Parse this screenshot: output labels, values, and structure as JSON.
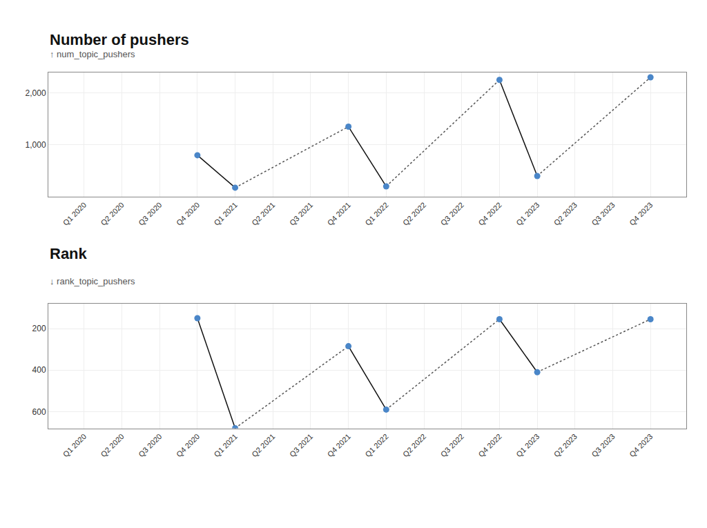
{
  "chart_data": [
    {
      "type": "line",
      "title": "Number of pushers",
      "ylabel": "↑ num_topic_pushers",
      "categories": [
        "Q1 2020",
        "Q2 2020",
        "Q3 2020",
        "Q4 2020",
        "Q1 2021",
        "Q2 2021",
        "Q3 2021",
        "Q4 2021",
        "Q1 2022",
        "Q2 2022",
        "Q3 2022",
        "Q4 2022",
        "Q1 2023",
        "Q2 2023",
        "Q3 2023",
        "Q4 2023"
      ],
      "values": [
        null,
        null,
        null,
        800,
        175,
        null,
        null,
        1350,
        200,
        null,
        null,
        2250,
        400,
        null,
        null,
        2300
      ],
      "color": "#4a86c8",
      "marker": "circle",
      "ylim": [
        0,
        2400
      ],
      "yticks": [
        {
          "value": 1000,
          "label": "1,000"
        },
        {
          "value": 2000,
          "label": "2,000"
        }
      ],
      "grid": true
    },
    {
      "type": "line",
      "title": "Rank",
      "ylabel": "↓ rank_topic_pushers",
      "categories": [
        "Q1 2020",
        "Q2 2020",
        "Q3 2020",
        "Q4 2020",
        "Q1 2021",
        "Q2 2021",
        "Q3 2021",
        "Q4 2021",
        "Q1 2022",
        "Q2 2022",
        "Q3 2022",
        "Q4 2022",
        "Q1 2023",
        "Q2 2023",
        "Q3 2023",
        "Q4 2023"
      ],
      "values": [
        null,
        null,
        null,
        150,
        680,
        null,
        null,
        285,
        590,
        null,
        null,
        155,
        410,
        null,
        null,
        155
      ],
      "color": "#4a86c8",
      "marker": "circle",
      "ylim": [
        680,
        80
      ],
      "yticks": [
        200,
        400,
        600
      ],
      "grid": true
    }
  ]
}
